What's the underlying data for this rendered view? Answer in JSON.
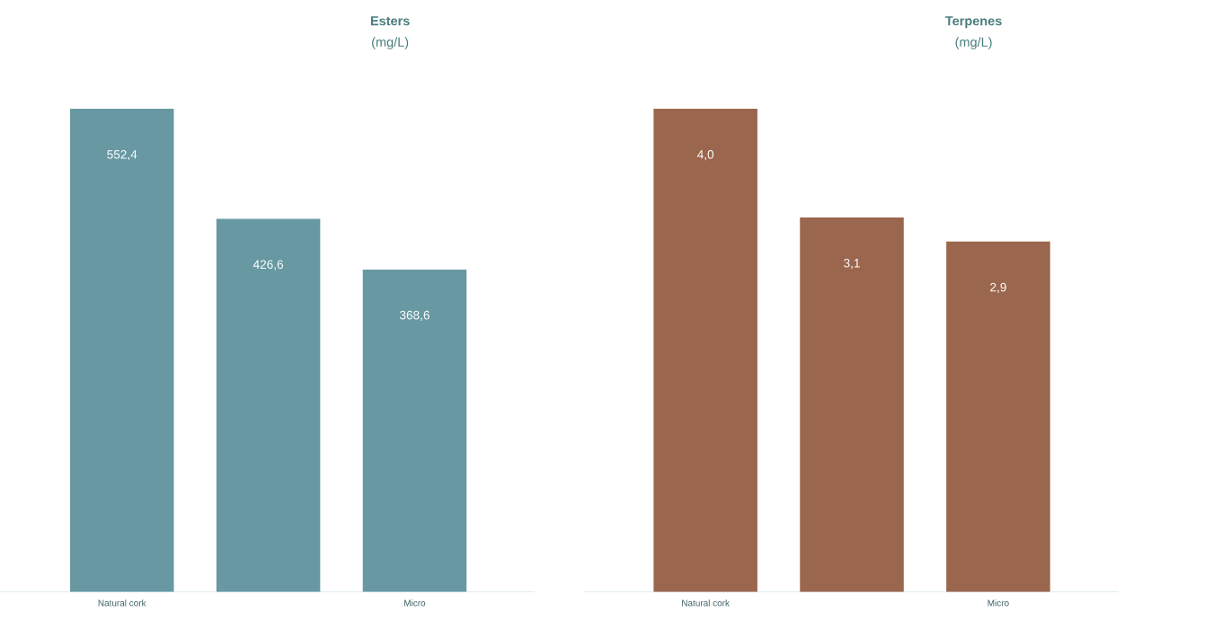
{
  "chart_data": [
    {
      "type": "bar",
      "title": "Esters",
      "subtitle": "(mg/L)",
      "categories": [
        "Natural cork",
        null,
        "Micro"
      ],
      "values": [
        552.4,
        426.6,
        368.6
      ],
      "value_labels": [
        "552,4",
        "426,6",
        "368,6"
      ],
      "color": "#6899a3"
    },
    {
      "type": "bar",
      "title": "Terpenes",
      "subtitle": "(mg/L)",
      "categories": [
        "Natural cork",
        null,
        "Micro"
      ],
      "values": [
        4.0,
        3.1,
        2.9
      ],
      "value_labels": [
        "4,0",
        "3,1",
        "2,9"
      ],
      "color": "#9a664d"
    }
  ]
}
